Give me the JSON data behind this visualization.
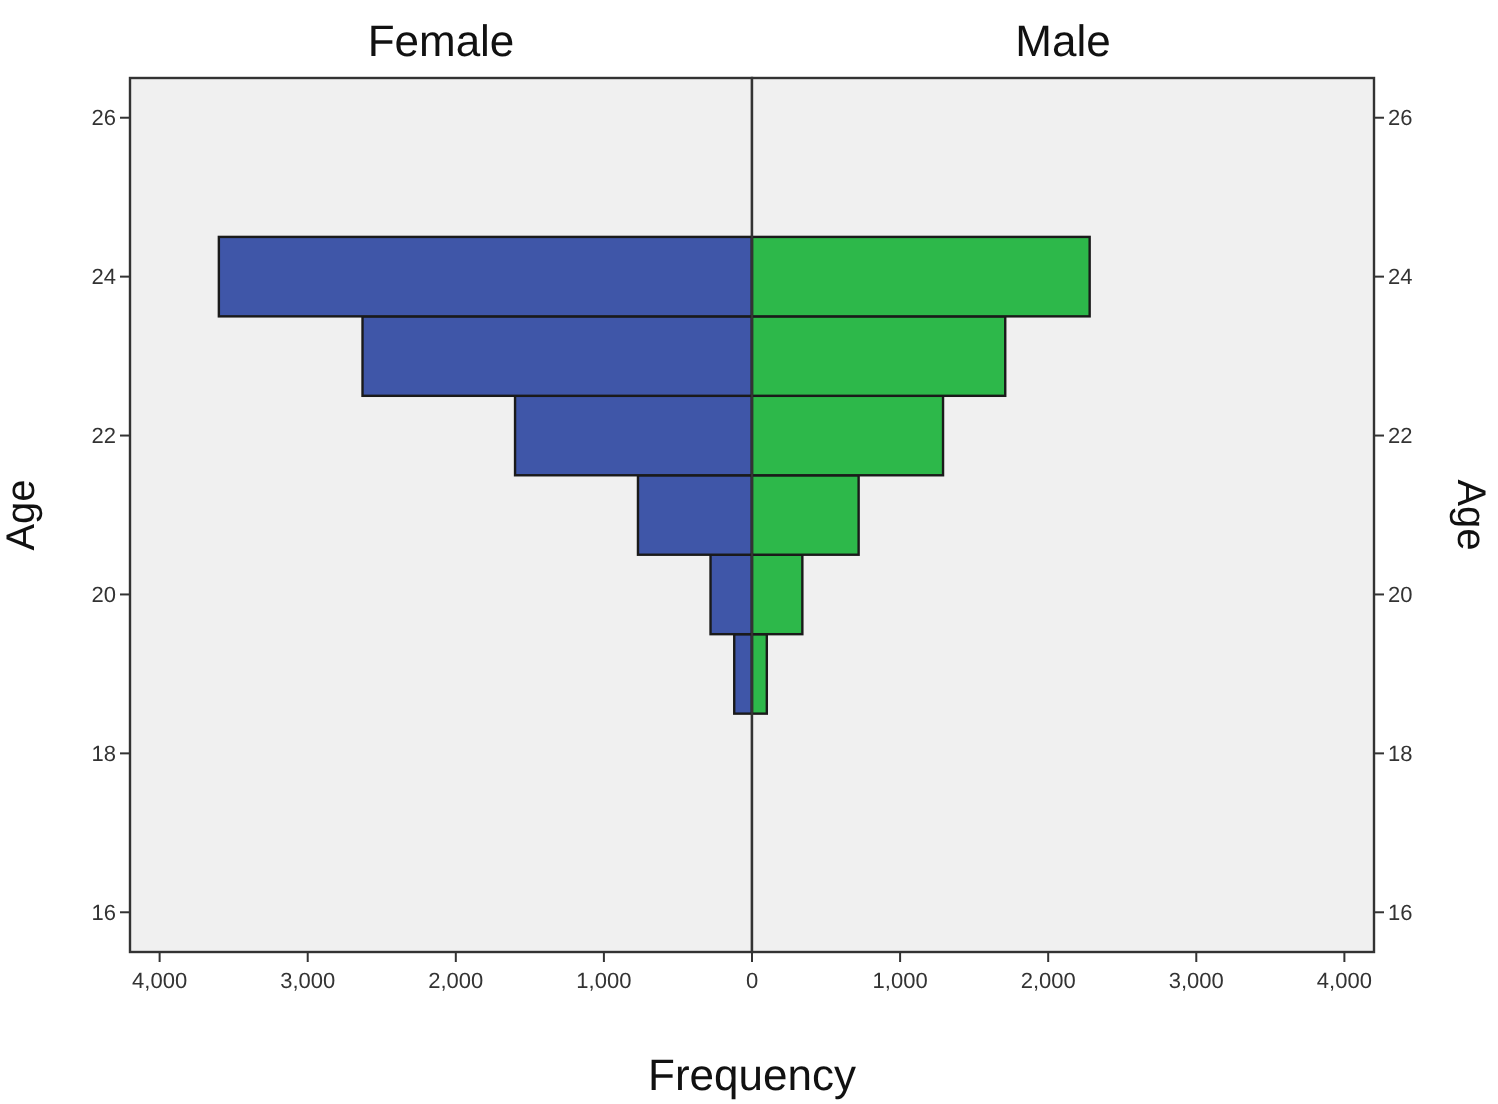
{
  "chart_data": [
    {
      "type": "histogram",
      "orientation": "horizontal",
      "title": "Female",
      "xlabel": "Frequency",
      "ylabel": "Age",
      "bins": [
        18.5,
        19.5,
        20.5,
        21.5,
        22.5,
        23.5,
        24.5
      ],
      "values": [
        120,
        280,
        770,
        1600,
        2630,
        3600
      ],
      "color": "#3f56a8",
      "xlim": [
        4200,
        0
      ],
      "xticks": [
        {
          "value": 4000,
          "label": "4,000"
        },
        {
          "value": 3000,
          "label": "3,000"
        },
        {
          "value": 2000,
          "label": "2,000"
        },
        {
          "value": 1000,
          "label": "1,000"
        },
        {
          "value": 0,
          "label": null
        }
      ],
      "ylim": [
        15.5,
        26.5
      ],
      "yticks": [
        16,
        18,
        20,
        22,
        24,
        26
      ]
    },
    {
      "type": "histogram",
      "orientation": "horizontal",
      "title": "Male",
      "ylabel": "Age",
      "bins": [
        18.5,
        19.5,
        20.5,
        21.5,
        22.5,
        23.5,
        24.5
      ],
      "values": [
        100,
        340,
        720,
        1290,
        1710,
        2280
      ],
      "color": "#2db84a",
      "xlim": [
        0,
        4200
      ],
      "xticks": [
        0,
        {
          "value": 1000,
          "label": "1,000"
        },
        {
          "value": 2000,
          "label": "2,000"
        },
        {
          "value": 3000,
          "label": "3,000"
        },
        {
          "value": 4000,
          "label": "4,000"
        }
      ],
      "ylim": [
        15.5,
        26.5
      ],
      "yticks": [
        16,
        18,
        20,
        22,
        24,
        26
      ]
    }
  ]
}
